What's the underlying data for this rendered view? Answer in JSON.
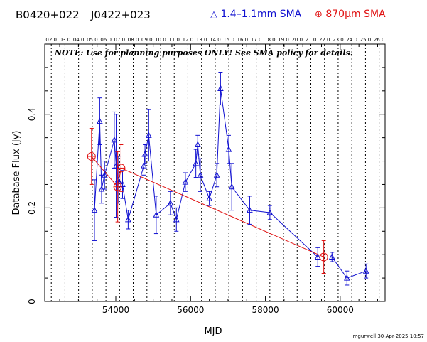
{
  "header": {
    "source_name": "B0420+022",
    "source_alias": "J0422+023",
    "legend_blue": "1.4–1.1mm SMA",
    "legend_red": "870μm SMA",
    "legend_blue_symbol": "△",
    "legend_red_symbol": "⊕"
  },
  "footer": {
    "credit": "mgurwell 30-Apr-2025 10:57"
  },
  "colors": {
    "blue": "#1010d0",
    "red": "#e01010",
    "grid": "#000000"
  },
  "chart_data": {
    "type": "scatter",
    "title": "",
    "xlabel": "MJD",
    "ylabel": "Database Flux (Jy)",
    "note": "NOTE: Use for planning purposes ONLY!  See SMA policy for details.",
    "xlim": [
      52100,
      61200
    ],
    "ylim": [
      0,
      0.55
    ],
    "x_ticks": [
      54000,
      56000,
      58000,
      60000
    ],
    "y_ticks": [
      0,
      0.2,
      0.4
    ],
    "y_tick_labels": [
      "0",
      "0.2",
      "0.4"
    ],
    "top_axis_labels": [
      "02.0",
      "03.0",
      "04.0",
      "05.0",
      "06.0",
      "07.0",
      "08.0",
      "09.0",
      "10.0",
      "11.0",
      "12.0",
      "13.0",
      "14.0",
      "15.0",
      "16.0",
      "17.0",
      "18.0",
      "19.0",
      "20.0",
      "21.0",
      "22.0",
      "23.0",
      "24.0",
      "25.0",
      "26.0"
    ],
    "year_lines_mjd": [
      52275,
      52640,
      53005,
      53371,
      53736,
      54101,
      54466,
      54832,
      55197,
      55562,
      55927,
      56293,
      56658,
      57023,
      57388,
      57754,
      58119,
      58484,
      58849,
      59215,
      59580,
      59945,
      60310,
      60676,
      61041
    ],
    "series": [
      {
        "name": "1.4–1.1mm SMA",
        "color": "#1010d0",
        "points": [
          {
            "x": 53430,
            "y": 0.195,
            "err": 0.065
          },
          {
            "x": 53570,
            "y": 0.385,
            "err": 0.05
          },
          {
            "x": 53620,
            "y": 0.24,
            "err": 0.03
          },
          {
            "x": 53700,
            "y": 0.27,
            "err": 0.03
          },
          {
            "x": 53960,
            "y": 0.345,
            "err": 0.06
          },
          {
            "x": 54010,
            "y": 0.29,
            "err": 0.11
          },
          {
            "x": 54060,
            "y": 0.26,
            "err": 0.05
          },
          {
            "x": 54180,
            "y": 0.25,
            "err": 0.03
          },
          {
            "x": 54330,
            "y": 0.175,
            "err": 0.02
          },
          {
            "x": 54750,
            "y": 0.29,
            "err": 0.02
          },
          {
            "x": 54780,
            "y": 0.315,
            "err": 0.02
          },
          {
            "x": 54880,
            "y": 0.355,
            "err": 0.055
          },
          {
            "x": 55080,
            "y": 0.185,
            "err": 0.04
          },
          {
            "x": 55460,
            "y": 0.21,
            "err": 0.025
          },
          {
            "x": 55620,
            "y": 0.175,
            "err": 0.025
          },
          {
            "x": 55860,
            "y": 0.255,
            "err": 0.02
          },
          {
            "x": 56140,
            "y": 0.295,
            "err": 0.03
          },
          {
            "x": 56190,
            "y": 0.335,
            "err": 0.02
          },
          {
            "x": 56260,
            "y": 0.27,
            "err": 0.035
          },
          {
            "x": 56500,
            "y": 0.22,
            "err": 0.015
          },
          {
            "x": 56700,
            "y": 0.27,
            "err": 0.025
          },
          {
            "x": 56800,
            "y": 0.455,
            "err": 0.035
          },
          {
            "x": 57020,
            "y": 0.325,
            "err": 0.03
          },
          {
            "x": 57100,
            "y": 0.245,
            "err": 0.05
          },
          {
            "x": 57580,
            "y": 0.195,
            "err": 0.03
          },
          {
            "x": 58120,
            "y": 0.19,
            "err": 0.015
          },
          {
            "x": 59400,
            "y": 0.095,
            "err": 0.02
          },
          {
            "x": 59780,
            "y": 0.095,
            "err": 0.01
          },
          {
            "x": 60180,
            "y": 0.05,
            "err": 0.015
          },
          {
            "x": 60690,
            "y": 0.065,
            "err": 0.015
          }
        ]
      },
      {
        "name": "870μm SMA",
        "color": "#e01010",
        "points": [
          {
            "x": 53350,
            "y": 0.31,
            "err": 0.06
          },
          {
            "x": 54050,
            "y": 0.245,
            "err": 0.075
          },
          {
            "x": 54140,
            "y": 0.285,
            "err": 0.05
          },
          {
            "x": 59560,
            "y": 0.095,
            "err": 0.035
          }
        ]
      }
    ]
  }
}
